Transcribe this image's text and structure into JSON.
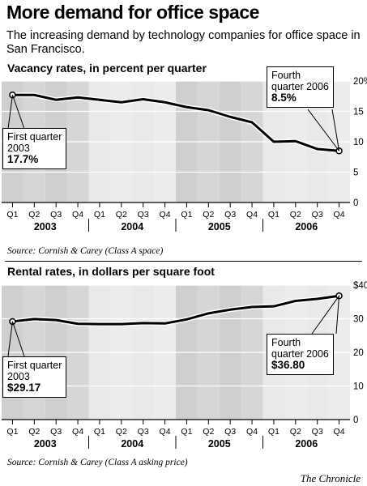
{
  "header": {
    "title": "More demand for office space",
    "subtitle": "The increasing demand by technology companies for office space in San Francisco."
  },
  "footer": {
    "credit": "The Chronicle"
  },
  "chart_data": [
    {
      "type": "line",
      "title": "Vacancy rates, in percent per quarter",
      "source": "Source: Cornish & Carey (Class A space)",
      "categories": [
        "Q1",
        "Q2",
        "Q3",
        "Q4",
        "Q1",
        "Q2",
        "Q3",
        "Q4",
        "Q1",
        "Q2",
        "Q3",
        "Q4",
        "Q1",
        "Q2",
        "Q3",
        "Q4"
      ],
      "years": [
        "2003",
        "2004",
        "2005",
        "2006"
      ],
      "ylim": [
        0,
        20
      ],
      "yticks": [
        "20%",
        "15",
        "10",
        "5",
        "0"
      ],
      "y_tick_values": [
        20,
        15,
        10,
        5,
        0
      ],
      "values": [
        17.7,
        17.7,
        16.9,
        17.3,
        16.9,
        16.5,
        17.0,
        16.5,
        15.7,
        15.2,
        14.1,
        13.2,
        10.0,
        10.1,
        8.8,
        8.5
      ],
      "colors": {
        "line": "#000000",
        "band_dark": "#cfcfcf",
        "band_light": "#e9e9e9"
      },
      "annotations": {
        "start": {
          "line1": "First quarter",
          "line2": "2003",
          "value": "17.7%"
        },
        "end": {
          "line1": "Fourth",
          "line2": "quarter 2006",
          "value": "8.5%"
        }
      }
    },
    {
      "type": "line",
      "title": "Rental rates, in dollars per square foot",
      "source": "Source: Cornish & Carey (Class A asking price)",
      "categories": [
        "Q1",
        "Q2",
        "Q3",
        "Q4",
        "Q1",
        "Q2",
        "Q3",
        "Q4",
        "Q1",
        "Q2",
        "Q3",
        "Q4",
        "Q1",
        "Q2",
        "Q3",
        "Q4"
      ],
      "years": [
        "2003",
        "2004",
        "2005",
        "2006"
      ],
      "ylim": [
        0,
        40
      ],
      "yticks": [
        "$40",
        "30",
        "20",
        "10",
        "0"
      ],
      "y_tick_values": [
        40,
        30,
        20,
        10,
        0
      ],
      "values": [
        29.17,
        29.9,
        29.6,
        28.5,
        28.4,
        28.4,
        28.7,
        28.6,
        29.8,
        31.6,
        32.7,
        33.5,
        33.7,
        35.3,
        35.9,
        36.8
      ],
      "colors": {
        "line": "#000000",
        "band_dark": "#cfcfcf",
        "band_light": "#e9e9e9"
      },
      "annotations": {
        "start": {
          "line1": "First quarter",
          "line2": "2003",
          "value": "$29.17"
        },
        "end": {
          "line1": "Fourth",
          "line2": "quarter 2006",
          "value": "$36.80"
        }
      }
    }
  ]
}
